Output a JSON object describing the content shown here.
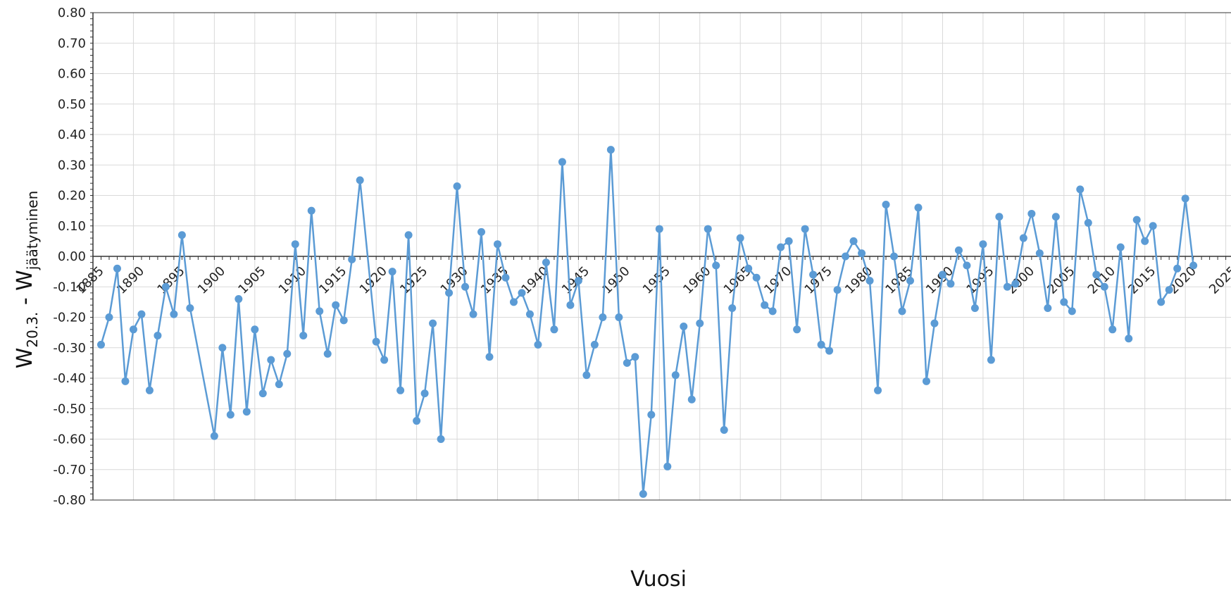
{
  "chart_data": {
    "type": "line",
    "title": "",
    "xlabel": "Vuosi",
    "ylabel": {
      "main": "W",
      "sub1": "20.3.",
      "dash": " - W",
      "sub2": "jäätyminen"
    },
    "xlim": [
      1885,
      2025
    ],
    "ylim": [
      -0.8,
      0.8
    ],
    "y_ticks": [
      "0.80",
      "0.70",
      "0.60",
      "0.50",
      "0.40",
      "0.30",
      "0.20",
      "0.10",
      "0.00",
      "-0.10",
      "-0.20",
      "-0.30",
      "-0.40",
      "-0.50",
      "-0.60",
      "-0.70",
      "-0.80"
    ],
    "x_ticks": [
      "1885",
      "1890",
      "1895",
      "1900",
      "1905",
      "1910",
      "1915",
      "1920",
      "1925",
      "1930",
      "1935",
      "1940",
      "1945",
      "1950",
      "1955",
      "1960",
      "1965",
      "1970",
      "1975",
      "1980",
      "1985",
      "1990",
      "1995",
      "2000",
      "2005",
      "2010",
      "2015",
      "2020",
      "2025"
    ],
    "grid": true,
    "marker": "circle",
    "line_color": "#5b9bd5",
    "series": [
      {
        "x": [
          1886,
          1887,
          1888,
          1889,
          1890,
          1891,
          1892,
          1893,
          1894,
          1895,
          1896,
          1897,
          1900,
          1901,
          1902,
          1903,
          1904,
          1905,
          1906,
          1907,
          1908,
          1909,
          1910,
          1911,
          1912,
          1913,
          1914,
          1915,
          1916,
          1917,
          1918,
          1920,
          1921,
          1922,
          1923,
          1924,
          1925,
          1926,
          1927,
          1928,
          1929,
          1930,
          1931,
          1932,
          1933,
          1934,
          1935,
          1936,
          1937,
          1938,
          1939,
          1940,
          1941,
          1942,
          1943,
          1944,
          1945,
          1946,
          1947,
          1948,
          1949,
          1950,
          1951,
          1952,
          1953,
          1954,
          1955,
          1956,
          1957,
          1958,
          1959,
          1960,
          1961,
          1962,
          1963,
          1964,
          1965,
          1966,
          1967,
          1968,
          1969,
          1970,
          1971,
          1972,
          1973,
          1974,
          1975,
          1976,
          1977,
          1978,
          1979,
          1980,
          1981,
          1982,
          1983,
          1984,
          1985,
          1986,
          1987,
          1988,
          1989,
          1990,
          1991,
          1992,
          1993,
          1994,
          1995,
          1996,
          1997,
          1998,
          1999,
          2000,
          2001,
          2002,
          2003,
          2004,
          2005,
          2006,
          2007,
          2008,
          2009,
          2010,
          2011,
          2012,
          2013,
          2014,
          2015,
          2016,
          2017,
          2018,
          2019,
          2020,
          2021
        ],
        "y": [
          -0.29,
          -0.2,
          -0.04,
          -0.41,
          -0.24,
          -0.19,
          -0.44,
          -0.26,
          -0.1,
          -0.19,
          0.07,
          -0.17,
          -0.59,
          -0.3,
          -0.52,
          -0.14,
          -0.51,
          -0.24,
          -0.45,
          -0.34,
          -0.42,
          -0.32,
          0.04,
          -0.26,
          0.15,
          -0.18,
          -0.32,
          -0.16,
          -0.21,
          -0.01,
          0.25,
          -0.28,
          -0.34,
          -0.05,
          -0.44,
          0.07,
          -0.54,
          -0.45,
          -0.22,
          -0.6,
          -0.12,
          0.23,
          -0.1,
          -0.19,
          0.08,
          -0.33,
          0.04,
          -0.07,
          -0.15,
          -0.12,
          -0.19,
          -0.29,
          -0.02,
          -0.24,
          0.31,
          -0.16,
          -0.08,
          -0.39,
          -0.29,
          -0.2,
          0.35,
          -0.2,
          -0.35,
          -0.33,
          -0.78,
          -0.52,
          0.09,
          -0.69,
          -0.39,
          -0.23,
          -0.47,
          -0.22,
          0.09,
          -0.03,
          -0.57,
          -0.17,
          0.06,
          -0.04,
          -0.07,
          -0.16,
          -0.18,
          0.03,
          0.05,
          -0.24,
          0.09,
          -0.06,
          -0.29,
          -0.31,
          -0.11,
          0.0,
          0.05,
          0.01,
          -0.08,
          -0.44,
          0.17,
          0.0,
          -0.18,
          -0.08,
          0.16,
          -0.41,
          -0.22,
          -0.06,
          -0.09,
          0.02,
          -0.03,
          -0.17,
          0.04,
          -0.34,
          0.13,
          -0.1,
          -0.09,
          0.06,
          0.14,
          0.01,
          -0.17,
          0.13,
          -0.15,
          -0.18,
          0.22,
          0.11,
          -0.06,
          -0.1,
          -0.24,
          0.03,
          -0.27,
          0.12,
          0.05,
          0.1,
          -0.15,
          -0.11,
          -0.04,
          0.19,
          -0.03
        ]
      }
    ]
  }
}
